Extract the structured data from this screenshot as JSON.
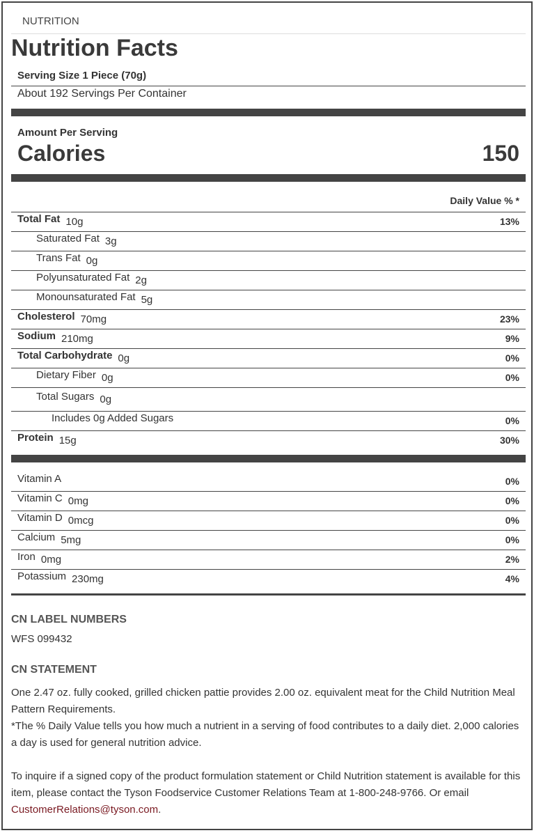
{
  "section_label": "NUTRITION",
  "title": "Nutrition Facts",
  "serving_size": "Serving Size 1 Piece (70g)",
  "servings_per_container": "About 192 Servings Per Container",
  "amount_per_serving": "Amount Per Serving",
  "calories_label": "Calories",
  "calories_value": "150",
  "daily_value_header": "Daily Value % *",
  "nutrients": [
    {
      "label": "Total Fat",
      "amount": "10g",
      "pct": "13%"
    },
    {
      "label": "Saturated Fat",
      "amount": "3g",
      "pct": ""
    },
    {
      "label": "Trans Fat",
      "amount": "0g",
      "pct": ""
    },
    {
      "label": "Polyunsaturated Fat",
      "amount": "2g",
      "pct": ""
    },
    {
      "label": "Monounsaturated Fat",
      "amount": "5g",
      "pct": ""
    },
    {
      "label": "Cholesterol",
      "amount": "70mg",
      "pct": "23%"
    },
    {
      "label": "Sodium",
      "amount": "210mg",
      "pct": "9%"
    },
    {
      "label": "Total Carbohydrate",
      "amount": "0g",
      "pct": "0%"
    },
    {
      "label": "Dietary Fiber",
      "amount": "0g",
      "pct": "0%"
    },
    {
      "label": "Total Sugars",
      "amount": "0g",
      "pct": ""
    },
    {
      "label": "Includes 0g Added Sugars",
      "amount": "",
      "pct": "0%"
    },
    {
      "label": "Protein",
      "amount": "15g",
      "pct": "30%"
    }
  ],
  "vitamins": [
    {
      "label": "Vitamin A",
      "amount": "",
      "pct": "0%"
    },
    {
      "label": "Vitamin C",
      "amount": "0mg",
      "pct": "0%"
    },
    {
      "label": "Vitamin D",
      "amount": "0mcg",
      "pct": "0%"
    },
    {
      "label": "Calcium",
      "amount": "5mg",
      "pct": "0%"
    },
    {
      "label": "Iron",
      "amount": "0mg",
      "pct": "2%"
    },
    {
      "label": "Potassium",
      "amount": "230mg",
      "pct": "4%"
    }
  ],
  "cn_label_heading": "CN LABEL NUMBERS",
  "cn_label_number": "WFS 099432",
  "cn_statement_heading": "CN STATEMENT",
  "cn_statement": "One 2.47 oz. fully cooked, grilled chicken pattie provides 2.00 oz. equivalent meat for the Child Nutrition Meal Pattern Requirements.",
  "dv_note": "*The % Daily Value tells you how much a nutrient in a serving of food contributes to a daily diet. 2,000 calories a day is used for general nutrition advice.",
  "contact_text": "To inquire if a signed copy of the product formulation statement or Child Nutrition statement is available for this item, please contact the Tyson Foodservice Customer Relations Team at 1-800-248-9766. Or email ",
  "contact_email": "CustomerRelations@tyson.com",
  "contact_end": ".",
  "link_color": "#7a1a22"
}
